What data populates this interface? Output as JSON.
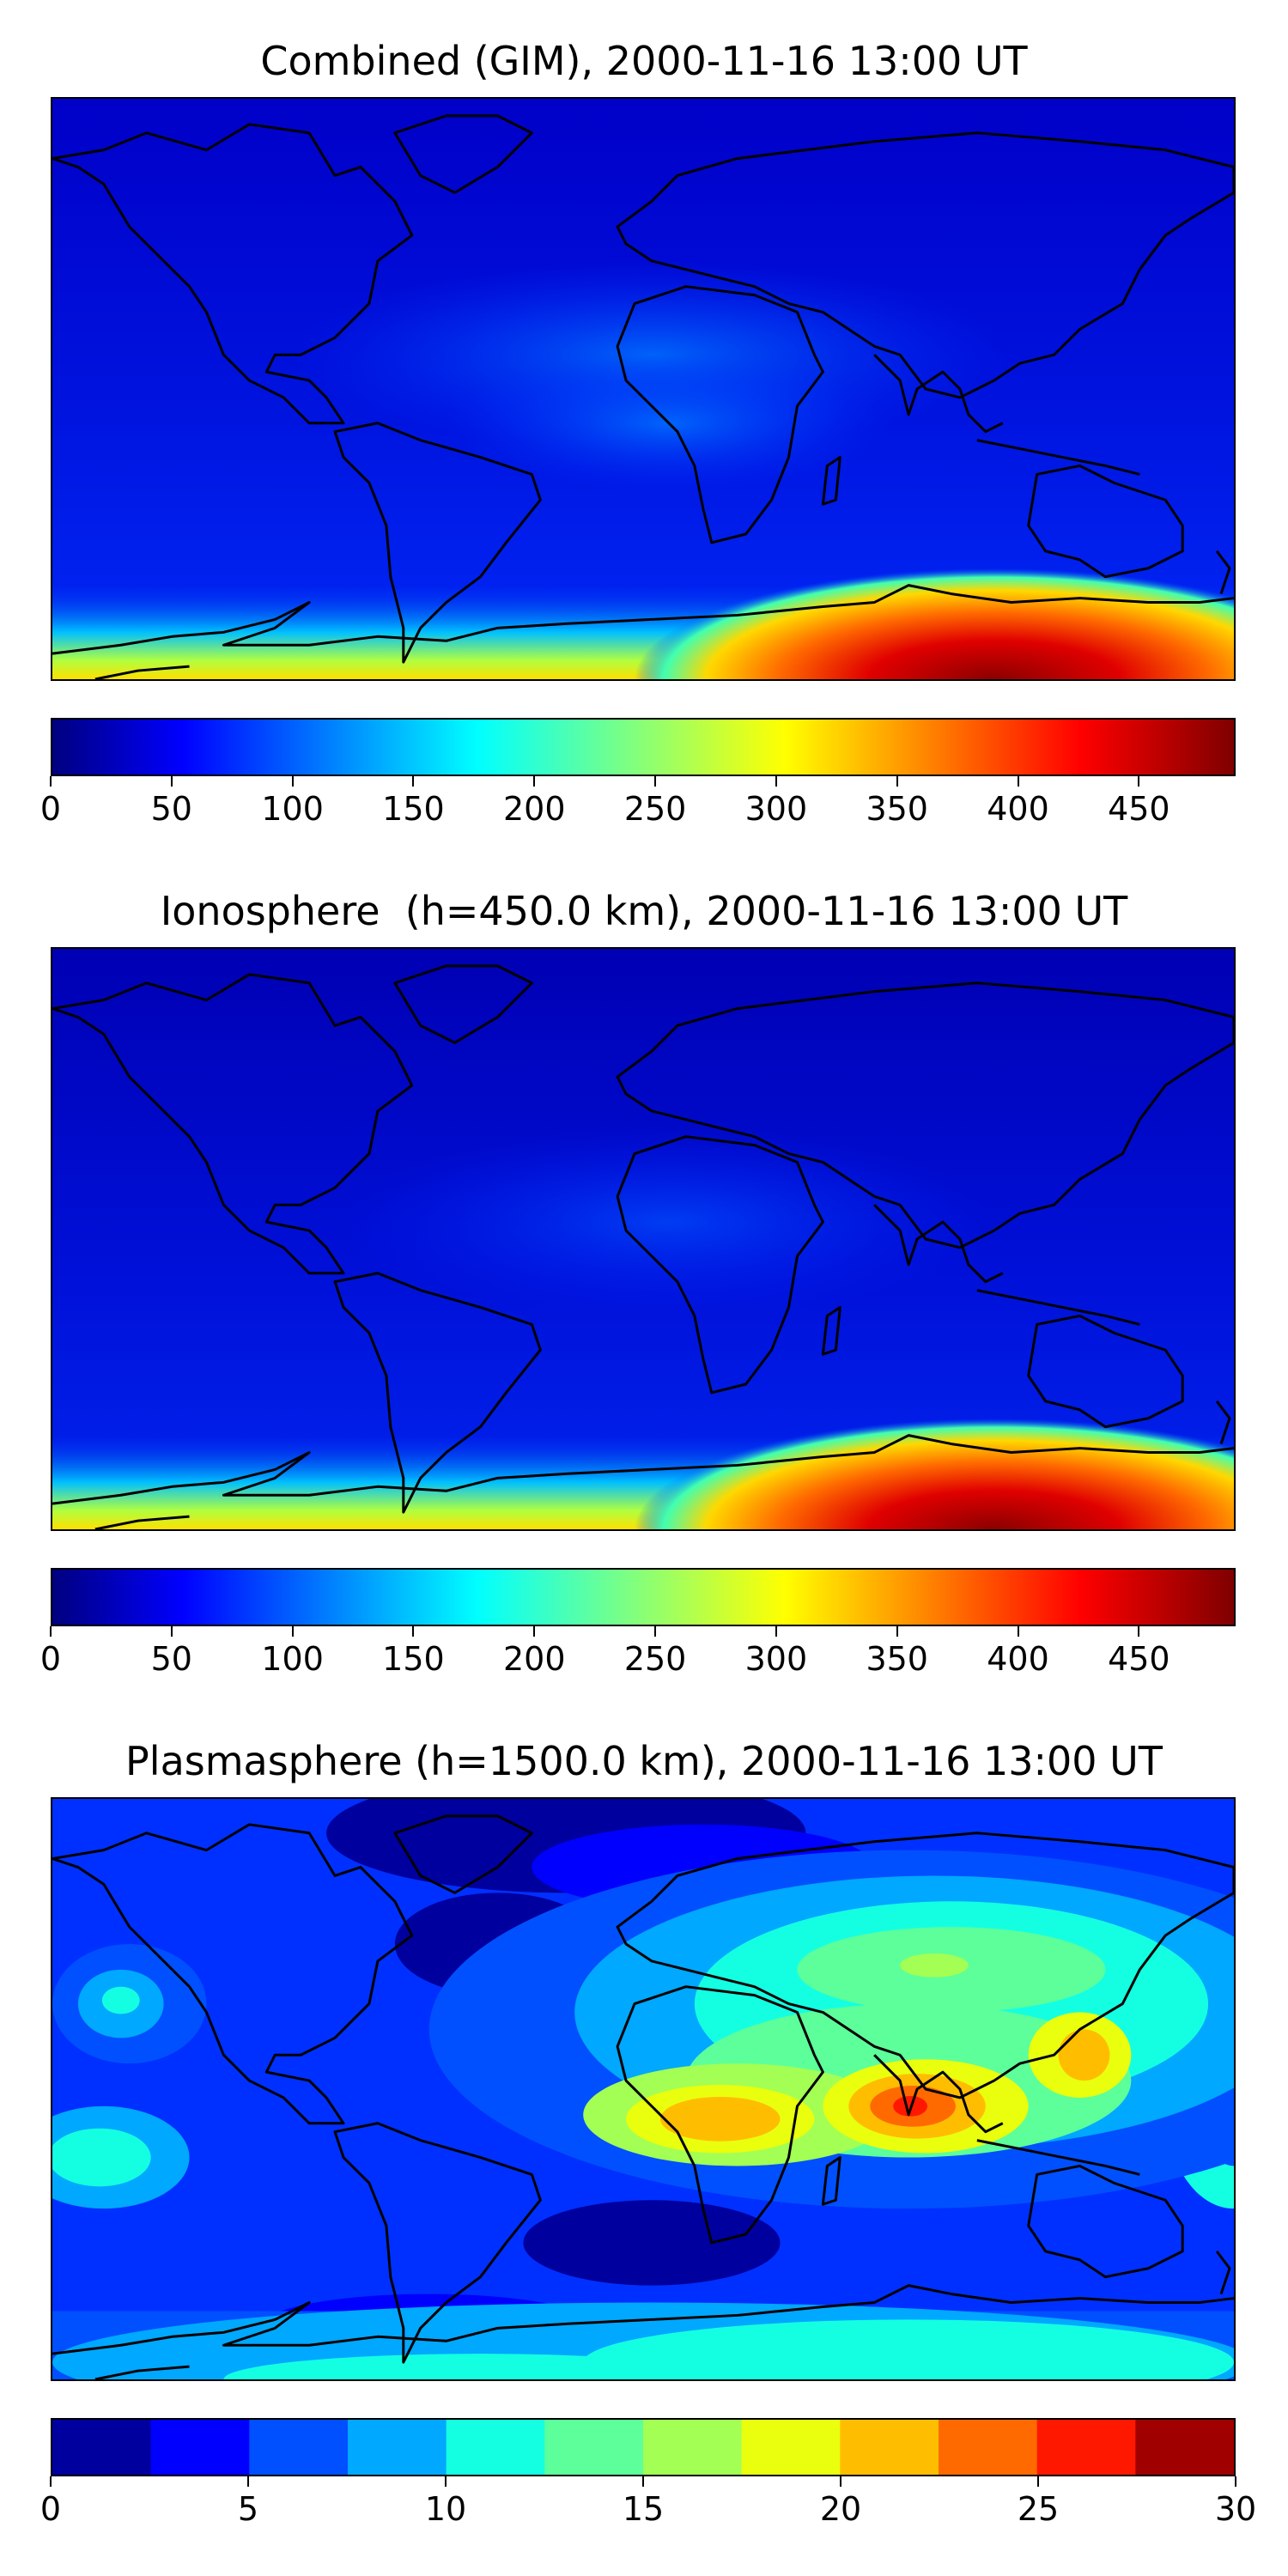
{
  "panels": [
    {
      "title": "Combined (GIM), 2000-11-16 13:00 UT",
      "colorbar": {
        "min": 0,
        "max": 490,
        "ticks": [
          "0",
          "50",
          "100",
          "150",
          "200",
          "250",
          "300",
          "350",
          "400",
          "450"
        ],
        "tick_values": [
          0,
          50,
          100,
          150,
          200,
          250,
          300,
          350,
          400,
          450
        ],
        "style": "continuous"
      }
    },
    {
      "title": "Ionosphere  (h=450.0 km), 2000-11-16 13:00 UT",
      "colorbar": {
        "min": 0,
        "max": 490,
        "ticks": [
          "0",
          "50",
          "100",
          "150",
          "200",
          "250",
          "300",
          "350",
          "400",
          "450"
        ],
        "tick_values": [
          0,
          50,
          100,
          150,
          200,
          250,
          300,
          350,
          400,
          450
        ],
        "style": "continuous"
      }
    },
    {
      "title": "Plasmasphere (h=1500.0 km), 2000-11-16 13:00 UT",
      "colorbar": {
        "min": 0,
        "max": 30,
        "ticks": [
          "0",
          "5",
          "10",
          "15",
          "20",
          "25",
          "30"
        ],
        "tick_values": [
          0,
          5,
          10,
          15,
          20,
          25,
          30
        ],
        "style": "discrete",
        "levels": 12
      }
    }
  ],
  "colormap": [
    "#00007f",
    "#0000ff",
    "#007fff",
    "#00ffff",
    "#7fff7f",
    "#ffff00",
    "#ff7f00",
    "#ff0000",
    "#7f0000"
  ],
  "discrete_colors": [
    "#00009f",
    "#0000ff",
    "#0050ff",
    "#00a8ff",
    "#14ffe2",
    "#5cff9a",
    "#a3ff53",
    "#e9ff0d",
    "#ffbd00",
    "#ff6a00",
    "#ff1800",
    "#a00000"
  ]
}
